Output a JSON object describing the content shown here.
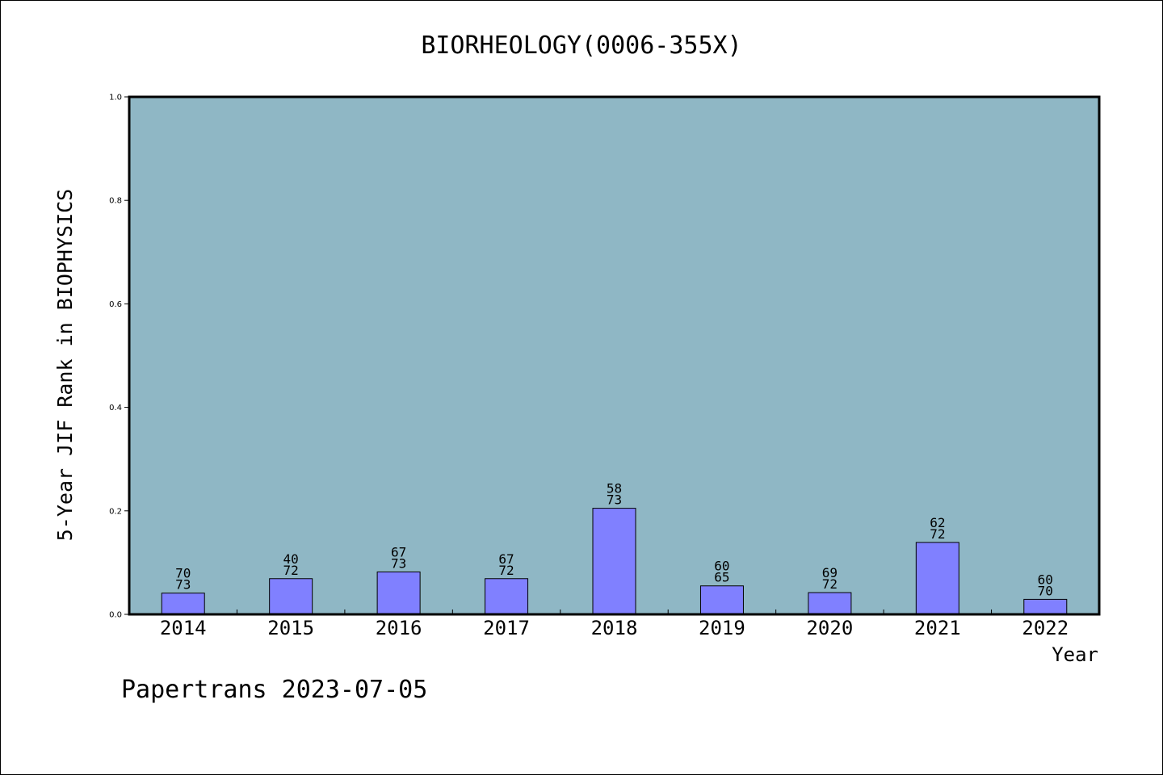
{
  "chart_data": {
    "type": "bar",
    "title": "BIORHEOLOGY(0006-355X)",
    "xlabel": "Year",
    "ylabel": "5-Year JIF Rank in BIOPHYSICS",
    "ylim": [
      0,
      1.0
    ],
    "yticks": [
      "0.0",
      "0.2",
      "0.4",
      "0.6",
      "0.8",
      "1.0"
    ],
    "grid": false,
    "categories": [
      "2014",
      "2015",
      "2016",
      "2017",
      "2018",
      "2019",
      "2020",
      "2021",
      "2022"
    ],
    "values": [
      0.041,
      0.069,
      0.082,
      0.069,
      0.205,
      0.055,
      0.042,
      0.139,
      0.029
    ],
    "labels_top": [
      "70",
      "40",
      "67",
      "67",
      "58",
      "60",
      "69",
      "62",
      "60"
    ],
    "labels_bottom": [
      "73",
      "72",
      "73",
      "72",
      "73",
      "65",
      "72",
      "72",
      "70"
    ]
  },
  "footer": "Papertrans 2023-07-05",
  "colors": {
    "plot_bg": "#8fb7c5",
    "bar_fill": "#8080ff",
    "axis": "#000000"
  }
}
